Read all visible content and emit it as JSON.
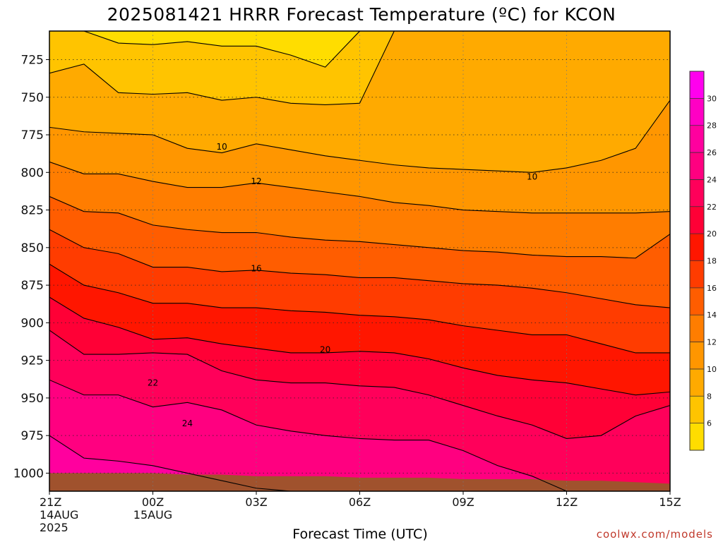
{
  "chart_data": {
    "type": "heatmap",
    "title": "2025081421 HRRR Forecast Temperature (ºC) for KCON",
    "xlabel": "Forecast Time (UTC)",
    "ylabel": "",
    "x_ticks": [
      {
        "hour": 0,
        "label": "21Z",
        "sub": [
          "14AUG",
          "2025"
        ]
      },
      {
        "hour": 3,
        "label": "00Z",
        "sub": [
          "15AUG"
        ]
      },
      {
        "hour": 6,
        "label": "03Z",
        "sub": []
      },
      {
        "hour": 9,
        "label": "06Z",
        "sub": []
      },
      {
        "hour": 12,
        "label": "09Z",
        "sub": []
      },
      {
        "hour": 15,
        "label": "12Z",
        "sub": []
      },
      {
        "hour": 18,
        "label": "15Z",
        "sub": []
      }
    ],
    "xlim": [
      0,
      18
    ],
    "y_ticks": [
      725,
      750,
      775,
      800,
      825,
      850,
      875,
      900,
      925,
      950,
      975,
      1000
    ],
    "ylim": [
      706,
      1012
    ],
    "grid": true,
    "colorbar": {
      "ticks": [
        6,
        8,
        10,
        12,
        14,
        16,
        18,
        20,
        22,
        24,
        26,
        28,
        30
      ],
      "bands": [
        {
          "min": 4,
          "max": 6,
          "color": "#ffdd00"
        },
        {
          "min": 6,
          "max": 8,
          "color": "#ffc400"
        },
        {
          "min": 8,
          "max": 10,
          "color": "#ffaa00"
        },
        {
          "min": 10,
          "max": 12,
          "color": "#ff9600"
        },
        {
          "min": 12,
          "max": 14,
          "color": "#ff7d00"
        },
        {
          "min": 14,
          "max": 16,
          "color": "#ff5d00"
        },
        {
          "min": 16,
          "max": 18,
          "color": "#ff3c00"
        },
        {
          "min": 18,
          "max": 20,
          "color": "#ff1600"
        },
        {
          "min": 20,
          "max": 22,
          "color": "#ff0036"
        },
        {
          "min": 22,
          "max": 24,
          "color": "#ff005a"
        },
        {
          "min": 24,
          "max": 26,
          "color": "#ff0080"
        },
        {
          "min": 26,
          "max": 28,
          "color": "#ff009e"
        },
        {
          "min": 28,
          "max": 30,
          "color": "#ff00c4"
        },
        {
          "min": 30,
          "max": 32,
          "color": "#ff00ee"
        }
      ]
    },
    "contour_hours": [
      0,
      1,
      2,
      3,
      4,
      5,
      6,
      7,
      8,
      9,
      10,
      11,
      12,
      13,
      14,
      15,
      16,
      17,
      18
    ],
    "contours": [
      {
        "value": 6,
        "p": [
          706,
          706,
          714,
          715,
          713,
          716,
          716,
          722,
          730,
          706,
          706,
          706,
          706,
          706,
          706,
          706,
          706,
          706,
          706
        ]
      },
      {
        "value": 8,
        "p": [
          734,
          728,
          747,
          748,
          747,
          752,
          750,
          754,
          755,
          754,
          706,
          706,
          706,
          706,
          706,
          706,
          706,
          706,
          706
        ]
      },
      {
        "value": 10,
        "p": [
          770,
          773,
          774,
          775,
          784,
          787,
          781,
          785,
          789,
          792,
          795,
          797,
          798,
          799,
          800,
          797,
          792,
          784,
          752
        ]
      },
      {
        "value": 12,
        "p": [
          793,
          801,
          801,
          806,
          810,
          810,
          807,
          810,
          813,
          816,
          820,
          822,
          825,
          826,
          827,
          827,
          827,
          827,
          826
        ]
      },
      {
        "value": 14,
        "p": [
          816,
          826,
          827,
          835,
          838,
          840,
          840,
          843,
          845,
          846,
          848,
          850,
          852,
          853,
          855,
          856,
          856,
          857,
          841
        ]
      },
      {
        "value": 16,
        "p": [
          838,
          850,
          854,
          863,
          863,
          866,
          865,
          867,
          868,
          870,
          870,
          872,
          874,
          875,
          877,
          880,
          884,
          888,
          890
        ]
      },
      {
        "value": 18,
        "p": [
          861,
          875,
          880,
          887,
          887,
          890,
          890,
          892,
          893,
          895,
          896,
          898,
          902,
          905,
          908,
          908,
          914,
          920,
          920
        ]
      },
      {
        "value": 20,
        "p": [
          883,
          897,
          903,
          911,
          910,
          914,
          917,
          920,
          920,
          919,
          920,
          924,
          930,
          935,
          938,
          940,
          944,
          948,
          946
        ]
      },
      {
        "value": 22,
        "p": [
          905,
          921,
          921,
          920,
          921,
          932,
          938,
          940,
          940,
          942,
          943,
          948,
          955,
          962,
          968,
          977,
          975,
          962,
          955
        ]
      },
      {
        "value": 24,
        "p": [
          938,
          948,
          948,
          956,
          953,
          958,
          968,
          972,
          975,
          977,
          978,
          978,
          985,
          995,
          1002,
          1012,
          1012,
          1012,
          1012
        ]
      },
      {
        "value": 26,
        "p": [
          975,
          990,
          992,
          995,
          1000,
          1005,
          1010,
          1012,
          1012,
          1012,
          1012,
          1012,
          1012,
          1012,
          1012,
          1012,
          1012,
          1012,
          1012
        ]
      }
    ],
    "contour_labels": [
      {
        "hour": 5,
        "p": 783,
        "text": "10"
      },
      {
        "hour": 14,
        "p": 803,
        "text": "10"
      },
      {
        "hour": 6,
        "p": 806,
        "text": "12"
      },
      {
        "hour": 6,
        "p": 864,
        "text": "16"
      },
      {
        "hour": 8,
        "p": 918,
        "text": "20"
      },
      {
        "hour": 3,
        "p": 940,
        "text": "22"
      },
      {
        "hour": 4,
        "p": 967,
        "text": "24"
      }
    ],
    "terrain": {
      "color": "#a0522d",
      "p": [
        1000,
        1000,
        1000,
        1000,
        1001,
        1001,
        1002,
        1002,
        1002,
        1003,
        1003,
        1003,
        1004,
        1004,
        1004,
        1005,
        1005,
        1006,
        1007
      ]
    }
  },
  "credit": "coolwx.com/models"
}
